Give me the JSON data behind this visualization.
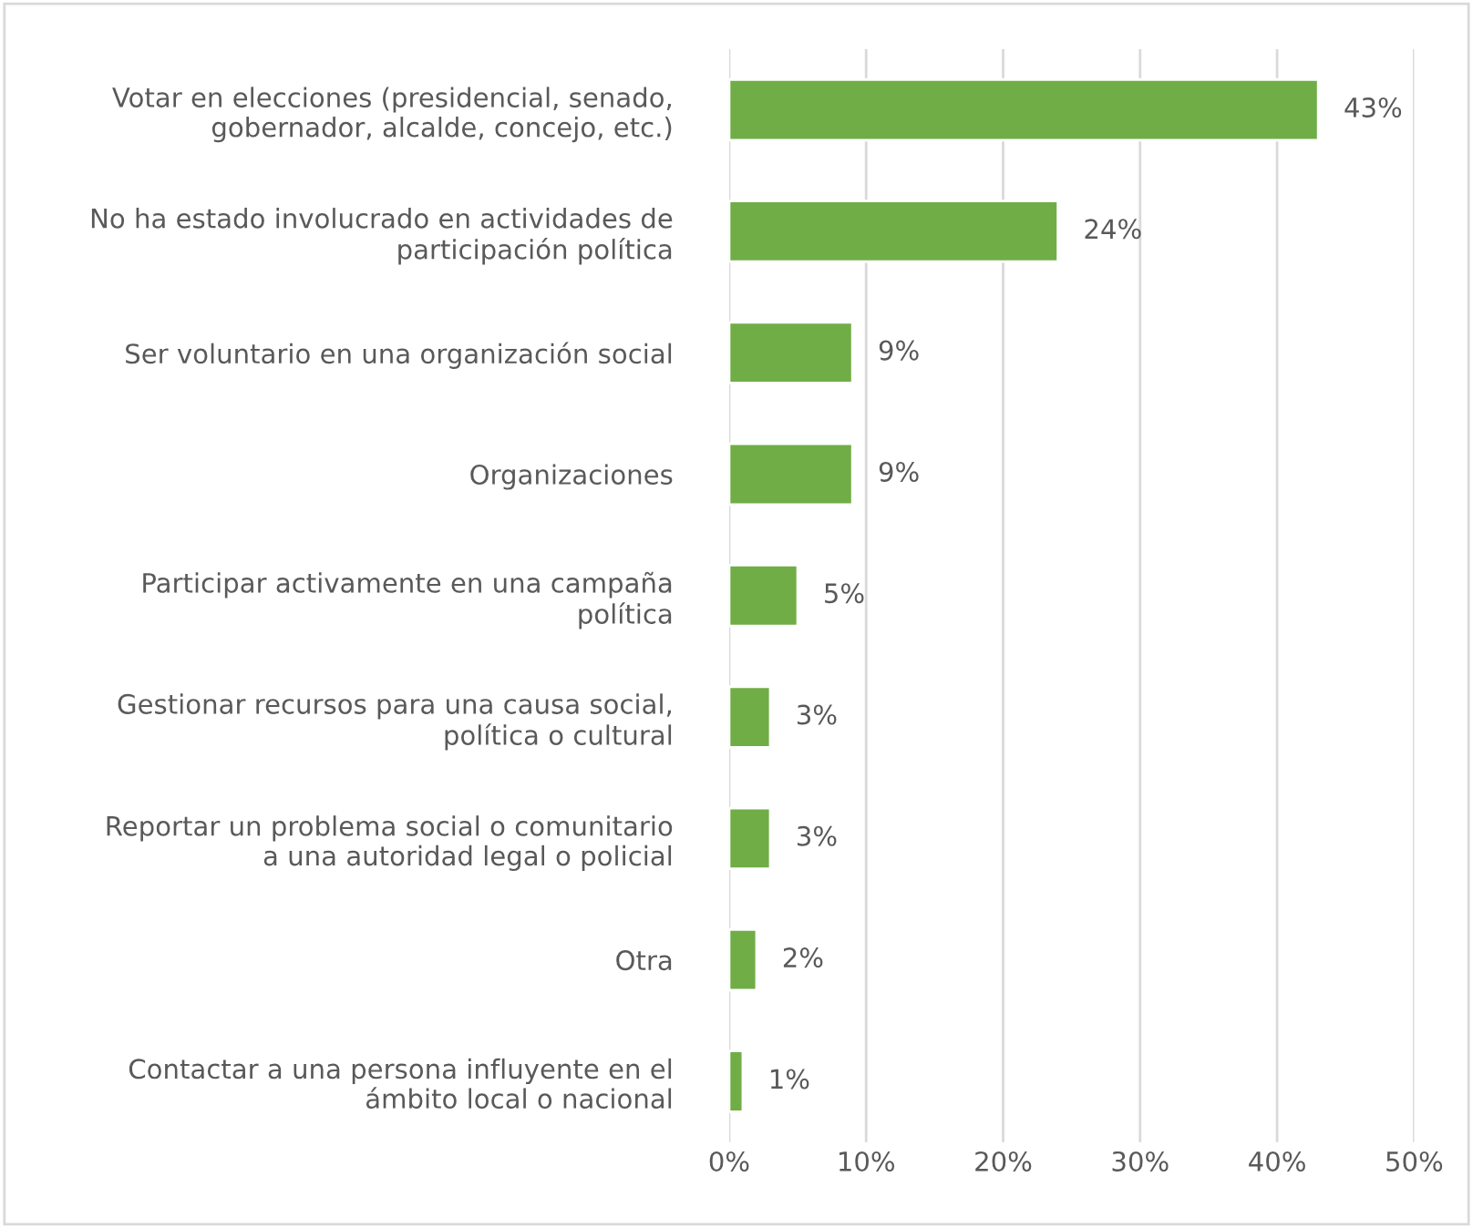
{
  "chart_data": {
    "type": "bar",
    "orientation": "horizontal",
    "categories": [
      "Votar en elecciones (presidencial, senado,\ngobernador, alcalde, concejo, etc.)",
      "No ha estado involucrado en actividades de\nparticipación política",
      "Ser voluntario en una organización social",
      "Organizaciones",
      "Participar activamente en una campaña\npolítica",
      "Gestionar recursos para una causa social,\npolítica o cultural",
      "Reportar un problema social o comunitario\na una autoridad legal o policial",
      "Otra",
      "Contactar a una persona influyente en el\námbito local o nacional"
    ],
    "values": [
      43,
      24,
      9,
      9,
      5,
      3,
      3,
      2,
      1
    ],
    "value_labels": [
      "43%",
      "24%",
      "9%",
      "9%",
      "5%",
      "3%",
      "3%",
      "2%",
      "1%"
    ],
    "color": "#70ad47",
    "xlim": [
      0,
      50
    ],
    "xticks": [
      {
        "value": 0,
        "label": "0%"
      },
      {
        "value": 10,
        "label": "10%"
      },
      {
        "value": 20,
        "label": "20%"
      },
      {
        "value": 30,
        "label": "30%"
      },
      {
        "value": 40,
        "label": "40%"
      },
      {
        "value": 50,
        "label": "50%"
      }
    ],
    "grid": "x"
  }
}
